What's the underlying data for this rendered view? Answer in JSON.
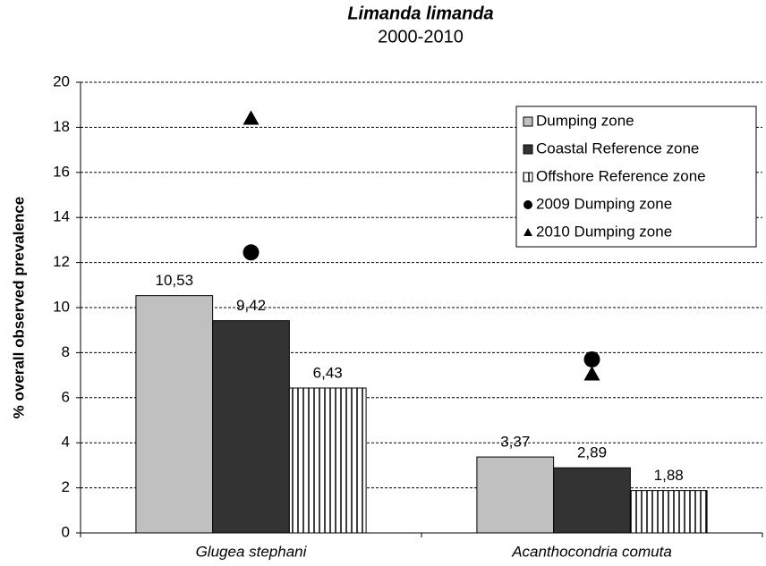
{
  "chart_data": {
    "type": "bar",
    "title": "Limanda limanda",
    "subtitle": "2000-2010",
    "y_label": "% overall observed prevalence",
    "categories": [
      "Glugea stephani",
      "Acanthocondria comuta"
    ],
    "series": [
      {
        "name": "Dumping zone",
        "color": "#c0c0c0",
        "values": [
          10.53,
          3.37
        ],
        "value_labels": [
          "10,53",
          "3,37"
        ]
      },
      {
        "name": "Coastal Reference zone",
        "color": "#333333",
        "values": [
          9.42,
          2.89
        ],
        "value_labels": [
          "9,42",
          "2,89"
        ]
      },
      {
        "name": "Offshore Reference zone",
        "color": "#ffffff",
        "hatch": "vertical",
        "values": [
          6.43,
          1.88
        ],
        "value_labels": [
          "6,43",
          "1,88"
        ]
      },
      {
        "name": "2009 Dumping zone",
        "type": "scatter",
        "marker": "circle",
        "color": "#000000",
        "values": [
          12.45,
          7.7
        ]
      },
      {
        "name": "2010 Dumping zone",
        "type": "scatter",
        "marker": "triangle",
        "color": "#000000",
        "values": [
          18.4,
          7.05
        ]
      }
    ],
    "ylim": [
      0,
      20
    ],
    "yticks": [
      0,
      2,
      4,
      6,
      8,
      10,
      12,
      14,
      16,
      18,
      20
    ],
    "grid": true,
    "legend": "top-right"
  }
}
